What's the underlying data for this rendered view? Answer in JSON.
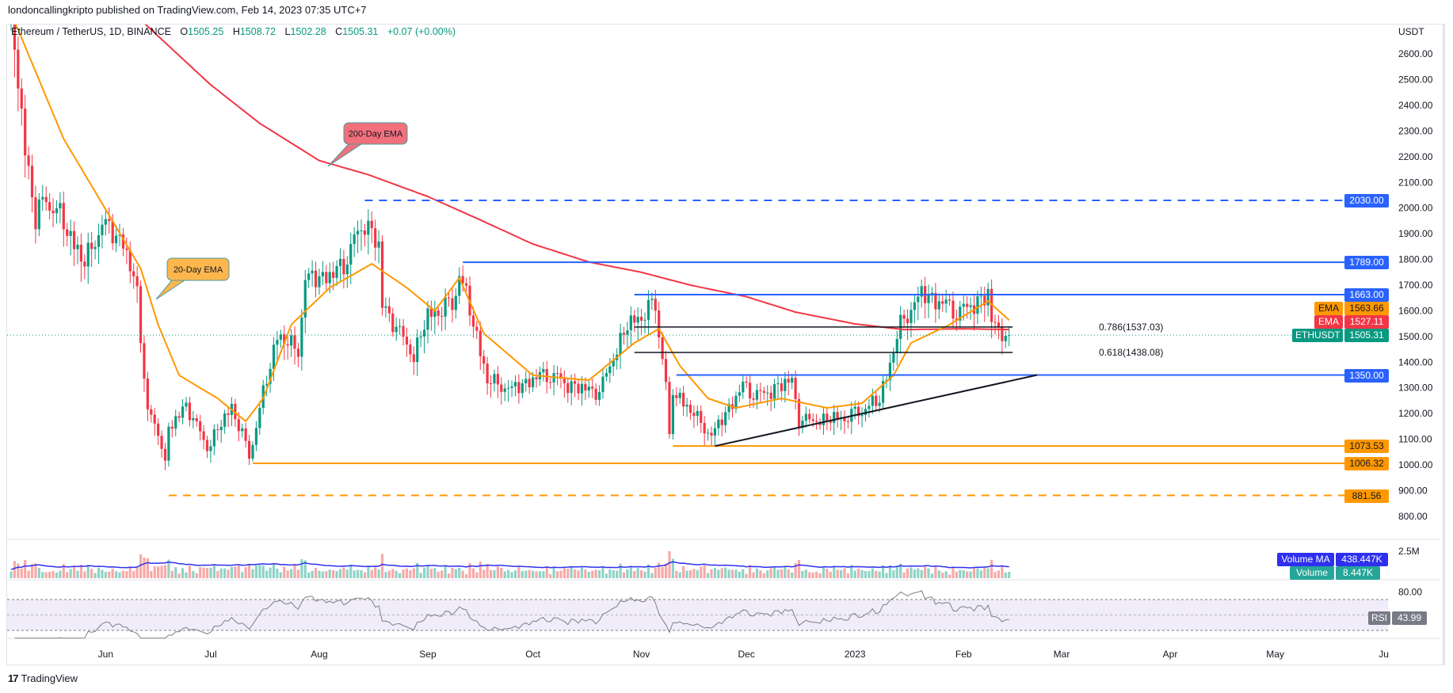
{
  "publisher": "londoncallingkripto published on TradingView.com, Feb 14, 2023 07:35 UTC+7",
  "legend": {
    "symbol": "Ethereum / TetherUS, 1D, BINANCE",
    "open_label": "O",
    "open": "1505.25",
    "high_label": "H",
    "high": "1508.72",
    "low_label": "L",
    "low": "1502.28",
    "close_label": "C",
    "close": "1505.31",
    "change": "+0.07 (+0.00%)"
  },
  "brand": "TradingView",
  "colors": {
    "up": "#089981",
    "down": "#f23645",
    "blue_level": "#2962ff",
    "orange_level": "#ff9800",
    "ema20": "#ff9800",
    "ema200": "#f23645",
    "rsi": "#7e7e86",
    "volume_ma": "#2f2ff0"
  },
  "chart_data": {
    "type": "candlestick",
    "symbol": "ETHUSDT",
    "interval": "1D",
    "currency": "USDT",
    "ylim": [
      780,
      2700
    ],
    "y_ticks": [
      "2600.00",
      "2500.00",
      "2400.00",
      "2300.00",
      "2200.00",
      "2100.00",
      "2000.00",
      "1900.00",
      "1800.00",
      "1700.00",
      "1600.00",
      "1500.00",
      "1400.00",
      "1300.00",
      "1200.00",
      "1100.00",
      "1000.00",
      "900.00",
      "800.00"
    ],
    "x_ticks": [
      {
        "date": "2022-06-01",
        "label": "Jun"
      },
      {
        "date": "2022-07-01",
        "label": "Jul"
      },
      {
        "date": "2022-08-01",
        "label": "Aug"
      },
      {
        "date": "2022-09-01",
        "label": "Sep"
      },
      {
        "date": "2022-10-01",
        "label": "Oct"
      },
      {
        "date": "2022-11-01",
        "label": "Nov"
      },
      {
        "date": "2022-12-01",
        "label": "Dec"
      },
      {
        "date": "2023-01-01",
        "label": "2023"
      },
      {
        "date": "2023-02-01",
        "label": "Feb"
      },
      {
        "date": "2023-03-01",
        "label": "Mar"
      },
      {
        "date": "2023-04-01",
        "label": "Apr"
      },
      {
        "date": "2023-05-01",
        "label": "May"
      },
      {
        "date": "2023-06-01",
        "label": "Ju"
      }
    ],
    "start_date": "2022-05-05",
    "close_path": [
      [
        "2022-05-05",
        2750
      ],
      [
        "2022-05-09",
        2240
      ],
      [
        "2022-05-11",
        2070
      ],
      [
        "2022-05-12",
        1960
      ],
      [
        "2022-05-15",
        2050
      ],
      [
        "2022-05-20",
        1960
      ],
      [
        "2022-05-26",
        1800
      ],
      [
        "2022-05-31",
        1940
      ],
      [
        "2022-06-06",
        1860
      ],
      [
        "2022-06-10",
        1660
      ],
      [
        "2022-06-13",
        1200
      ],
      [
        "2022-06-17",
        1085
      ],
      [
        "2022-06-18",
        995
      ],
      [
        "2022-06-19",
        1125
      ],
      [
        "2022-06-24",
        1225
      ],
      [
        "2022-06-30",
        1070
      ],
      [
        "2022-07-07",
        1235
      ],
      [
        "2022-07-12",
        1040
      ],
      [
        "2022-07-17",
        1345
      ],
      [
        "2022-07-20",
        1520
      ],
      [
        "2022-07-26",
        1450
      ],
      [
        "2022-07-28",
        1720
      ],
      [
        "2022-08-05",
        1730
      ],
      [
        "2022-08-08",
        1780
      ],
      [
        "2022-08-14",
        1935
      ],
      [
        "2022-08-18",
        1830
      ],
      [
        "2022-08-19",
        1610
      ],
      [
        "2022-08-28",
        1430
      ],
      [
        "2022-09-01",
        1590
      ],
      [
        "2022-09-08",
        1630
      ],
      [
        "2022-09-10",
        1760
      ],
      [
        "2022-09-14",
        1570
      ],
      [
        "2022-09-18",
        1340
      ],
      [
        "2022-09-25",
        1290
      ],
      [
        "2022-10-05",
        1350
      ],
      [
        "2022-10-13",
        1290
      ],
      [
        "2022-10-20",
        1280
      ],
      [
        "2022-10-25",
        1460
      ],
      [
        "2022-10-28",
        1550
      ],
      [
        "2022-11-05",
        1630
      ],
      [
        "2022-11-08",
        1330
      ],
      [
        "2022-11-09",
        1100
      ],
      [
        "2022-11-10",
        1300
      ],
      [
        "2022-11-14",
        1240
      ],
      [
        "2022-11-21",
        1110
      ],
      [
        "2022-11-30",
        1300
      ],
      [
        "2022-12-05",
        1260
      ],
      [
        "2022-12-14",
        1320
      ],
      [
        "2022-12-16",
        1170
      ],
      [
        "2022-12-31",
        1196
      ],
      [
        "2023-01-08",
        1265
      ],
      [
        "2023-01-14",
        1550
      ],
      [
        "2023-01-20",
        1660
      ],
      [
        "2023-01-31",
        1585
      ],
      [
        "2023-02-06",
        1630
      ],
      [
        "2023-02-08",
        1650
      ],
      [
        "2023-02-09",
        1545
      ],
      [
        "2023-02-13",
        1505
      ],
      [
        "2023-02-14",
        1505.31
      ]
    ],
    "ema20": {
      "label": "EMA",
      "value": "1563.66",
      "annotation": "20-Day EMA",
      "path": [
        [
          "2022-05-05",
          2760
        ],
        [
          "2022-05-20",
          2270
        ],
        [
          "2022-05-31",
          2018
        ],
        [
          "2022-06-11",
          1765
        ],
        [
          "2022-06-16",
          1546
        ],
        [
          "2022-06-22",
          1349
        ],
        [
          "2022-07-03",
          1259
        ],
        [
          "2022-07-11",
          1170
        ],
        [
          "2022-07-16",
          1259
        ],
        [
          "2022-07-24",
          1546
        ],
        [
          "2022-08-04",
          1690
        ],
        [
          "2022-08-16",
          1783
        ],
        [
          "2022-08-26",
          1690
        ],
        [
          "2022-09-03",
          1600
        ],
        [
          "2022-09-10",
          1728
        ],
        [
          "2022-09-17",
          1512
        ],
        [
          "2022-10-01",
          1349
        ],
        [
          "2022-10-17",
          1330
        ],
        [
          "2022-10-30",
          1475
        ],
        [
          "2022-11-06",
          1530
        ],
        [
          "2022-11-12",
          1386
        ],
        [
          "2022-11-20",
          1259
        ],
        [
          "2022-11-28",
          1222
        ],
        [
          "2022-12-11",
          1259
        ],
        [
          "2022-12-24",
          1222
        ],
        [
          "2023-01-03",
          1240
        ],
        [
          "2023-01-12",
          1349
        ],
        [
          "2023-01-17",
          1475
        ],
        [
          "2023-01-28",
          1546
        ],
        [
          "2023-02-08",
          1638
        ],
        [
          "2023-02-14",
          1563.66
        ]
      ]
    },
    "ema200": {
      "label": "EMA",
      "value": "1527.11",
      "annotation": "200-Day EMA",
      "path": [
        [
          "2022-06-12",
          2720
        ],
        [
          "2022-07-01",
          2480
        ],
        [
          "2022-07-15",
          2330
        ],
        [
          "2022-08-01",
          2185
        ],
        [
          "2022-08-15",
          2130
        ],
        [
          "2022-09-01",
          2045
        ],
        [
          "2022-09-15",
          1960
        ],
        [
          "2022-10-01",
          1860
        ],
        [
          "2022-10-17",
          1790
        ],
        [
          "2022-11-01",
          1750
        ],
        [
          "2022-11-15",
          1700
        ],
        [
          "2022-12-01",
          1655
        ],
        [
          "2022-12-15",
          1595
        ],
        [
          "2023-01-01",
          1549
        ],
        [
          "2023-01-15",
          1527
        ],
        [
          "2023-02-01",
          1530
        ],
        [
          "2023-02-14",
          1527.11
        ]
      ]
    },
    "levels": [
      {
        "price": 2030.0,
        "label": "2030.00",
        "from": "2022-08-14",
        "style": "dashed",
        "color": "#2962ff"
      },
      {
        "price": 1789.0,
        "label": "1789.00",
        "from": "2022-09-11",
        "style": "solid",
        "color": "#2962ff"
      },
      {
        "price": 1663.0,
        "label": "1663.00",
        "from": "2022-10-30",
        "style": "solid",
        "color": "#2962ff"
      },
      {
        "price": 1350.0,
        "label": "1350.00",
        "from": "2022-11-11",
        "style": "solid",
        "color": "#2962ff"
      },
      {
        "price": 1073.53,
        "label": "1073.53",
        "from": "2022-11-10",
        "style": "solid",
        "color": "#ff9800"
      },
      {
        "price": 1006.32,
        "label": "1006.32",
        "from": "2022-07-13",
        "style": "solid",
        "color": "#ff9800"
      },
      {
        "price": 881.56,
        "label": "881.56",
        "from": "2022-06-19",
        "style": "dashed",
        "color": "#ff9800"
      }
    ],
    "fib_levels": [
      {
        "ratio": "0.786",
        "price": 1537.03,
        "label": "0.786(1537.03)",
        "from": "2022-10-30",
        "to": "2023-02-15"
      },
      {
        "ratio": "0.618",
        "price": 1438.08,
        "label": "0.618(1438.08)",
        "from": "2022-10-30",
        "to": "2023-02-15"
      }
    ],
    "trendline": {
      "from": [
        "2022-11-22",
        1073.53
      ],
      "to": [
        "2023-02-22",
        1350
      ]
    },
    "last_price": {
      "label": "ETHUSDT",
      "value": "1505.31",
      "price": 1505.31
    },
    "volume": {
      "ma_label": "Volume MA",
      "ma_value": "438.447K",
      "label": "Volume",
      "value": "8.447K",
      "tick": "2.5M"
    },
    "rsi": {
      "label": "RSI",
      "value": "43.99",
      "tick": "80.00",
      "upper": 70,
      "middle": 50,
      "lower": 30
    }
  }
}
